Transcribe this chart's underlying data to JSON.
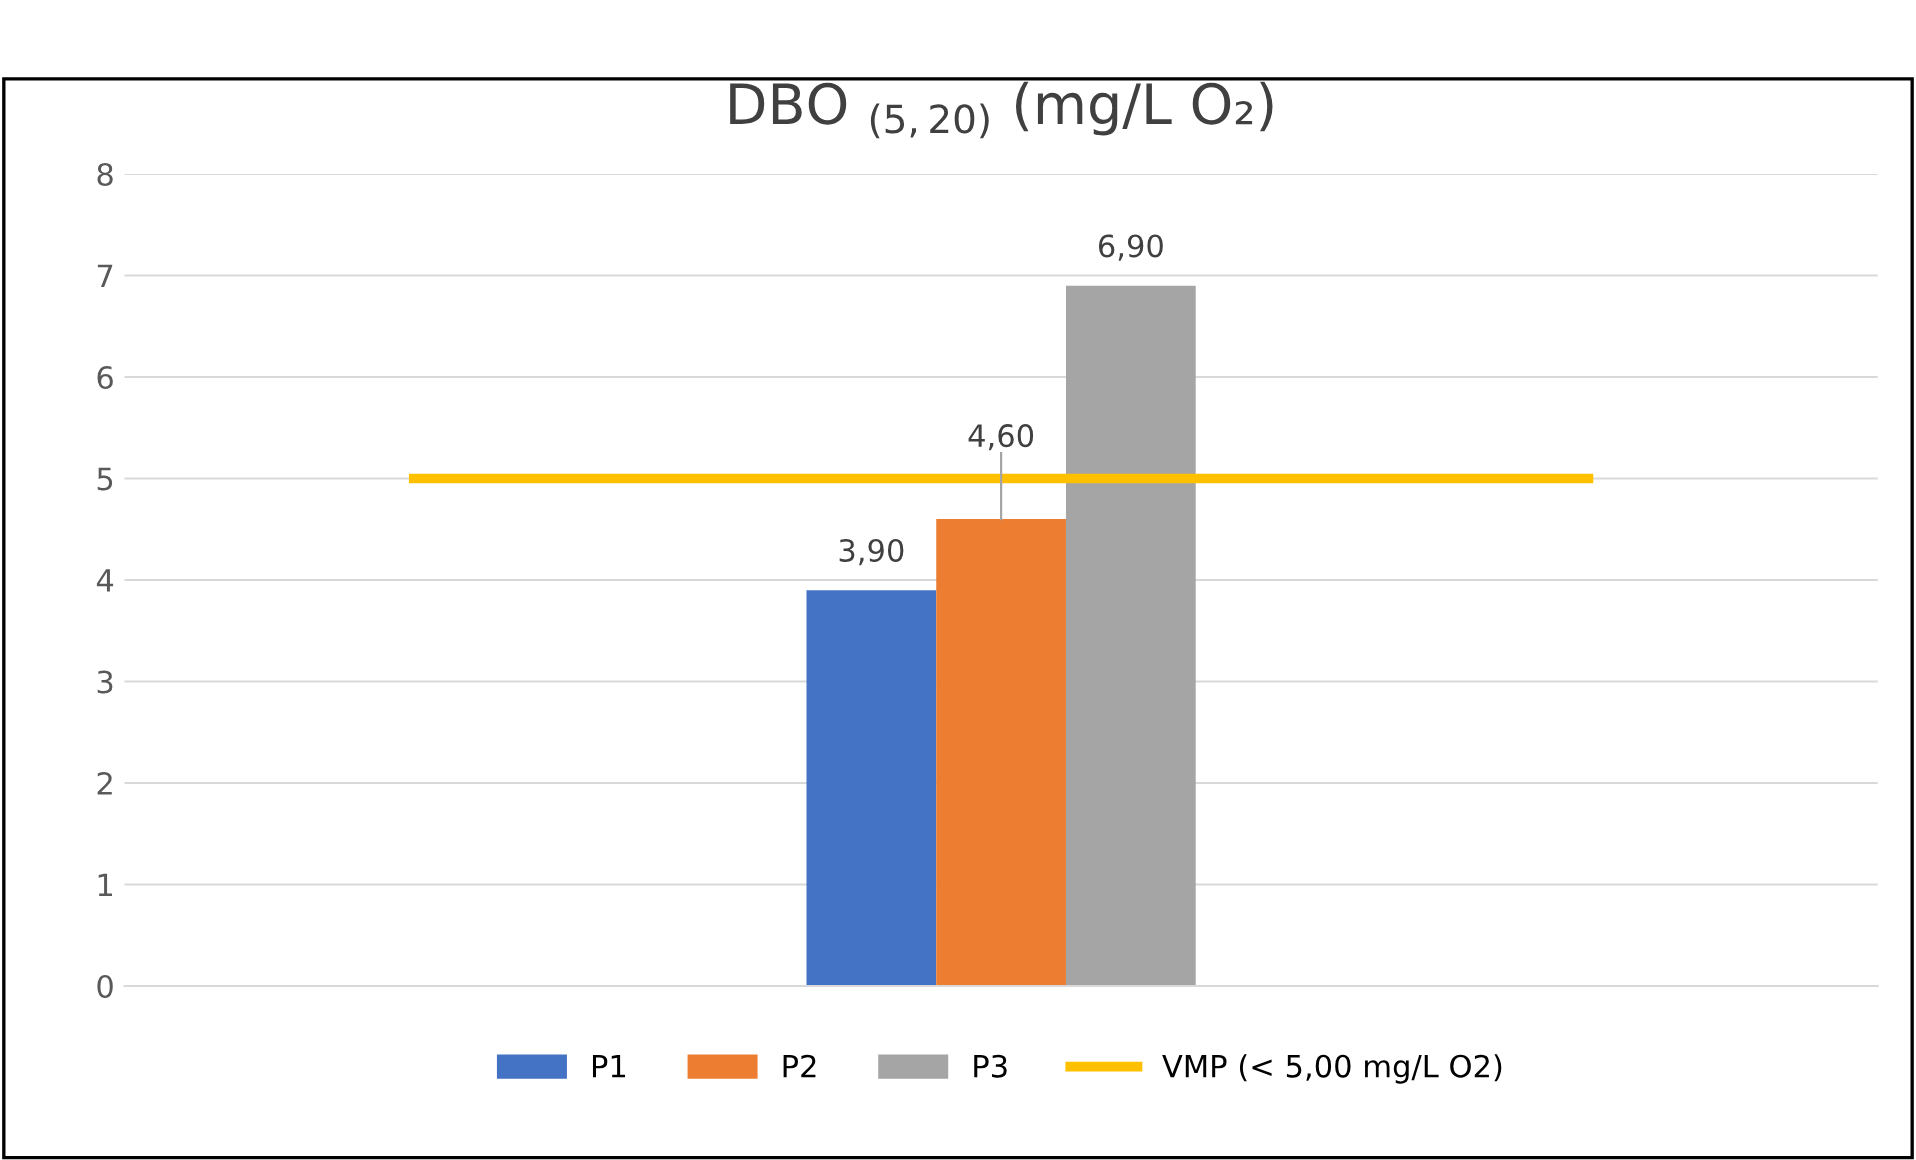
{
  "chart_data": {
    "type": "bar",
    "title": "DBO $_{(5,20)}$ (mg/L O₂)",
    "categories": [
      null
    ],
    "series": [
      {
        "name": "P1",
        "color": "#4472c4",
        "values": [
          3.9
        ],
        "value_labels": [
          "3,90"
        ]
      },
      {
        "name": "P2",
        "color": "#ed7d31",
        "values": [
          4.6
        ],
        "value_labels": [
          "4,60"
        ]
      },
      {
        "name": "P3",
        "color": "#a5a5a5",
        "values": [
          6.9
        ],
        "value_labels": [
          "6,90"
        ]
      }
    ],
    "ref_lines": [
      {
        "axis": "y",
        "value": 5,
        "label": "VMP (< 5,00 mg/L O2)",
        "color": "#ffc000"
      }
    ],
    "ylim": [
      0,
      8
    ],
    "yticks": [
      0,
      1,
      2,
      3,
      4,
      5,
      6,
      7,
      8
    ],
    "grid": "y",
    "legend": "bottom"
  }
}
